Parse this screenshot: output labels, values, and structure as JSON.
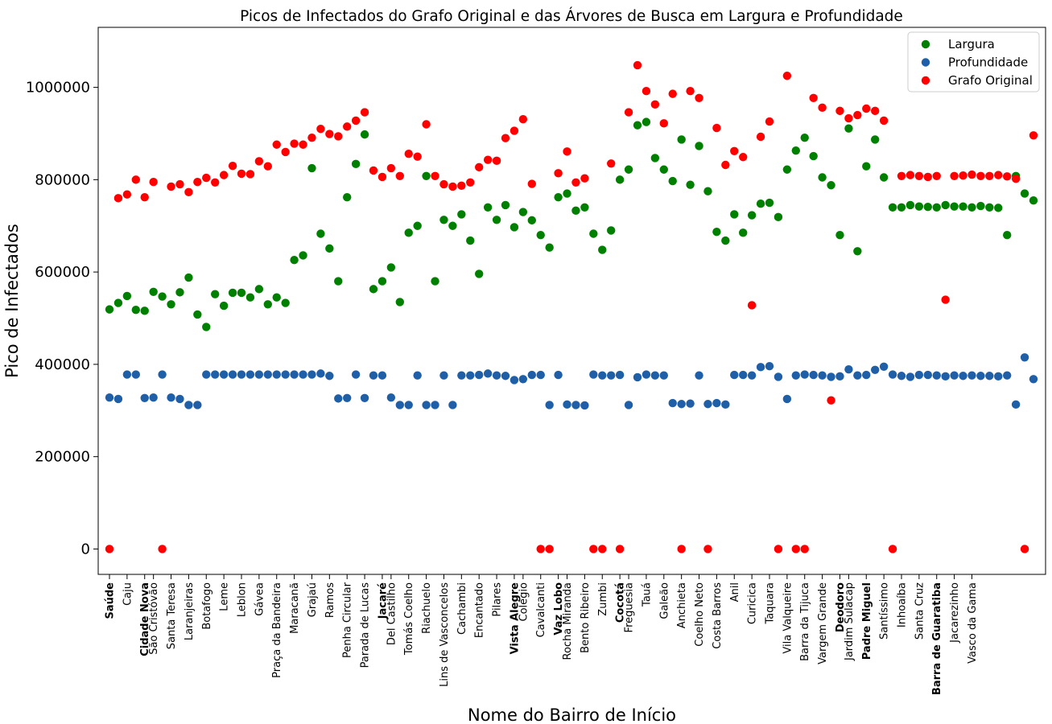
{
  "chart_data": {
    "type": "scatter",
    "title": "Picos de Infectados do Grafo Original e das Árvores de Busca em Largura e Profundidade",
    "xlabel": "Nome do Bairro de Início",
    "ylabel": "Pico de Infectados",
    "ylim": [
      -55000,
      1130000
    ],
    "yticks": [
      0,
      200000,
      400000,
      600000,
      800000,
      1000000
    ],
    "ytick_labels": [
      "0",
      "200000",
      "400000",
      "600000",
      "800000",
      "1000000"
    ],
    "n_points": 106,
    "xtick_labels": [
      {
        "i": 0,
        "text": "Saúde",
        "bold": true
      },
      {
        "i": 2,
        "text": "Caju",
        "bold": false
      },
      {
        "i": 4,
        "text": "Cidade Nova",
        "bold": true
      },
      {
        "i": 5,
        "text": "São Cristóvão",
        "bold": false
      },
      {
        "i": 7,
        "text": "Santa Teresa",
        "bold": false
      },
      {
        "i": 9,
        "text": "Laranjeiras",
        "bold": false
      },
      {
        "i": 11,
        "text": "Botafogo",
        "bold": false
      },
      {
        "i": 13,
        "text": "Leme",
        "bold": false
      },
      {
        "i": 15,
        "text": "Leblon",
        "bold": false
      },
      {
        "i": 17,
        "text": "Gávea",
        "bold": false
      },
      {
        "i": 19,
        "text": "Praça da Bandeira",
        "bold": false
      },
      {
        "i": 21,
        "text": "Maracanã",
        "bold": false
      },
      {
        "i": 23,
        "text": "Grajaú",
        "bold": false
      },
      {
        "i": 25,
        "text": "Ramos",
        "bold": false
      },
      {
        "i": 27,
        "text": "Penha Circular",
        "bold": false
      },
      {
        "i": 29,
        "text": "Parada de Lucas",
        "bold": false
      },
      {
        "i": 31,
        "text": "Jacaré",
        "bold": true
      },
      {
        "i": 32,
        "text": "Del Castilho",
        "bold": false
      },
      {
        "i": 34,
        "text": "Tomás Coelho",
        "bold": false
      },
      {
        "i": 36,
        "text": "Riachuelo",
        "bold": false
      },
      {
        "i": 38,
        "text": "Lins de Vasconcelos",
        "bold": false
      },
      {
        "i": 40,
        "text": "Cachambi",
        "bold": false
      },
      {
        "i": 42,
        "text": "Encantado",
        "bold": false
      },
      {
        "i": 44,
        "text": "Pilares",
        "bold": false
      },
      {
        "i": 46,
        "text": "Vista Alegre",
        "bold": true
      },
      {
        "i": 47,
        "text": "Colégio",
        "bold": false
      },
      {
        "i": 49,
        "text": "Cavalcanti",
        "bold": false
      },
      {
        "i": 51,
        "text": "Vaz Lobo",
        "bold": true
      },
      {
        "i": 52,
        "text": "Rocha Miranda",
        "bold": false
      },
      {
        "i": 54,
        "text": "Bento Ribeiro",
        "bold": false
      },
      {
        "i": 56,
        "text": "Zumbi",
        "bold": false
      },
      {
        "i": 58,
        "text": "Cocotá",
        "bold": true
      },
      {
        "i": 59,
        "text": "Freguesia",
        "bold": false
      },
      {
        "i": 61,
        "text": "Tauá",
        "bold": false
      },
      {
        "i": 63,
        "text": "Galeão",
        "bold": false
      },
      {
        "i": 65,
        "text": "Anchieta",
        "bold": false
      },
      {
        "i": 67,
        "text": "Coelho Neto",
        "bold": false
      },
      {
        "i": 69,
        "text": "Costa Barros",
        "bold": false
      },
      {
        "i": 71,
        "text": "Anil",
        "bold": false
      },
      {
        "i": 73,
        "text": "Curicica",
        "bold": false
      },
      {
        "i": 75,
        "text": "Taquara",
        "bold": false
      },
      {
        "i": 77,
        "text": "Vila Valqueire",
        "bold": false
      },
      {
        "i": 79,
        "text": "Barra da Tijuca",
        "bold": false
      },
      {
        "i": 81,
        "text": "Vargem Grande",
        "bold": false
      },
      {
        "i": 83,
        "text": "Deodoro",
        "bold": true
      },
      {
        "i": 84,
        "text": "Jardim Sulacap",
        "bold": false
      },
      {
        "i": 86,
        "text": "Padre Miguel",
        "bold": true
      },
      {
        "i": 88,
        "text": "Santíssimo",
        "bold": false
      },
      {
        "i": 90,
        "text": "Inhoaíba",
        "bold": false
      },
      {
        "i": 92,
        "text": "Santa Cruz",
        "bold": false
      },
      {
        "i": 94,
        "text": "Barra de Guaratiba",
        "bold": true
      },
      {
        "i": 96,
        "text": "Jacarezinho",
        "bold": false
      },
      {
        "i": 98,
        "text": "Vasco da Gama",
        "bold": false
      }
    ],
    "series": [
      {
        "name": "Largura",
        "color": "#008000",
        "values": [
          519000,
          533000,
          548000,
          518000,
          516000,
          557000,
          547000,
          530000,
          556000,
          588000,
          508000,
          481000,
          552000,
          527000,
          555000,
          555000,
          545000,
          563000,
          530000,
          545000,
          533000,
          626000,
          636000,
          825000,
          683000,
          651000,
          580000,
          762000,
          834000,
          898000,
          563000,
          580000,
          610000,
          535000,
          685000,
          700000,
          808000,
          580000,
          713000,
          700000,
          725000,
          668000,
          596000,
          740000,
          713000,
          745000,
          697000,
          730000,
          712000,
          680000,
          653000,
          762000,
          770000,
          733000,
          740000,
          683000,
          648000,
          690000,
          800000,
          822000,
          918000,
          925000,
          847000,
          822000,
          797000,
          887000,
          789000,
          873000,
          775000,
          687000,
          668000,
          725000,
          685000,
          723000,
          748000,
          750000,
          719000,
          822000,
          863000,
          891000,
          851000,
          805000,
          788000,
          680000,
          911000,
          645000,
          829000,
          887000,
          805000,
          740000,
          740000,
          745000,
          742000,
          741000,
          740000,
          745000,
          742000,
          742000,
          740000,
          743000,
          740000,
          739000,
          680000,
          808000,
          770000,
          755000
        ]
      },
      {
        "name": "Profundidade",
        "color": "#1f5fa8",
        "values": [
          328000,
          325000,
          378000,
          378000,
          327000,
          328000,
          378000,
          328000,
          325000,
          312000,
          312000,
          378000,
          378000,
          378000,
          378000,
          378000,
          378000,
          378000,
          378000,
          378000,
          378000,
          378000,
          378000,
          378000,
          380000,
          375000,
          326000,
          327000,
          378000,
          327000,
          376000,
          376000,
          328000,
          312000,
          312000,
          376000,
          312000,
          312000,
          376000,
          312000,
          376000,
          376000,
          377000,
          380000,
          376000,
          375000,
          366000,
          368000,
          377000,
          377000,
          312000,
          377000,
          313000,
          312000,
          311000,
          378000,
          376000,
          376000,
          377000,
          312000,
          372000,
          378000,
          376000,
          376000,
          316000,
          314000,
          315000,
          376000,
          314000,
          316000,
          313000,
          377000,
          377000,
          376000,
          394000,
          396000,
          373000,
          325000,
          376000,
          378000,
          377000,
          376000,
          373000,
          374000,
          389000,
          376000,
          377000,
          388000,
          395000,
          378000,
          375000,
          373000,
          377000,
          377000,
          376000,
          374000,
          376000,
          375000,
          376000,
          375000,
          375000,
          374000,
          376000,
          313000,
          415000,
          368000
        ]
      },
      {
        "name": "Grafo Original",
        "color": "#ff0000",
        "values": [
          0,
          760000,
          768000,
          800000,
          762000,
          795000,
          0,
          785000,
          790000,
          773000,
          795000,
          804000,
          794000,
          810000,
          830000,
          813000,
          812000,
          840000,
          829000,
          876000,
          860000,
          878000,
          876000,
          891000,
          910000,
          899000,
          894000,
          915000,
          928000,
          946000,
          820000,
          806000,
          825000,
          808000,
          856000,
          850000,
          920000,
          808000,
          790000,
          785000,
          787000,
          794000,
          827000,
          843000,
          841000,
          890000,
          906000,
          931000,
          791000,
          0,
          0,
          814000,
          861000,
          794000,
          803000,
          0,
          0,
          835000,
          0,
          946000,
          1048000,
          992000,
          963000,
          922000,
          986000,
          0,
          992000,
          977000,
          0,
          912000,
          832000,
          862000,
          849000,
          528000,
          893000,
          926000,
          0,
          1025000,
          0,
          0,
          977000,
          956000,
          322000,
          949000,
          933000,
          940000,
          954000,
          949000,
          928000,
          0,
          808000,
          810000,
          808000,
          806000,
          808000,
          540000,
          808000,
          809000,
          811000,
          808000,
          808000,
          810000,
          807000,
          802000,
          0,
          896000
        ]
      }
    ],
    "legend": {
      "position": "top-right",
      "entries": [
        "Largura",
        "Profundidade",
        "Grafo Original"
      ]
    },
    "grid": false
  }
}
